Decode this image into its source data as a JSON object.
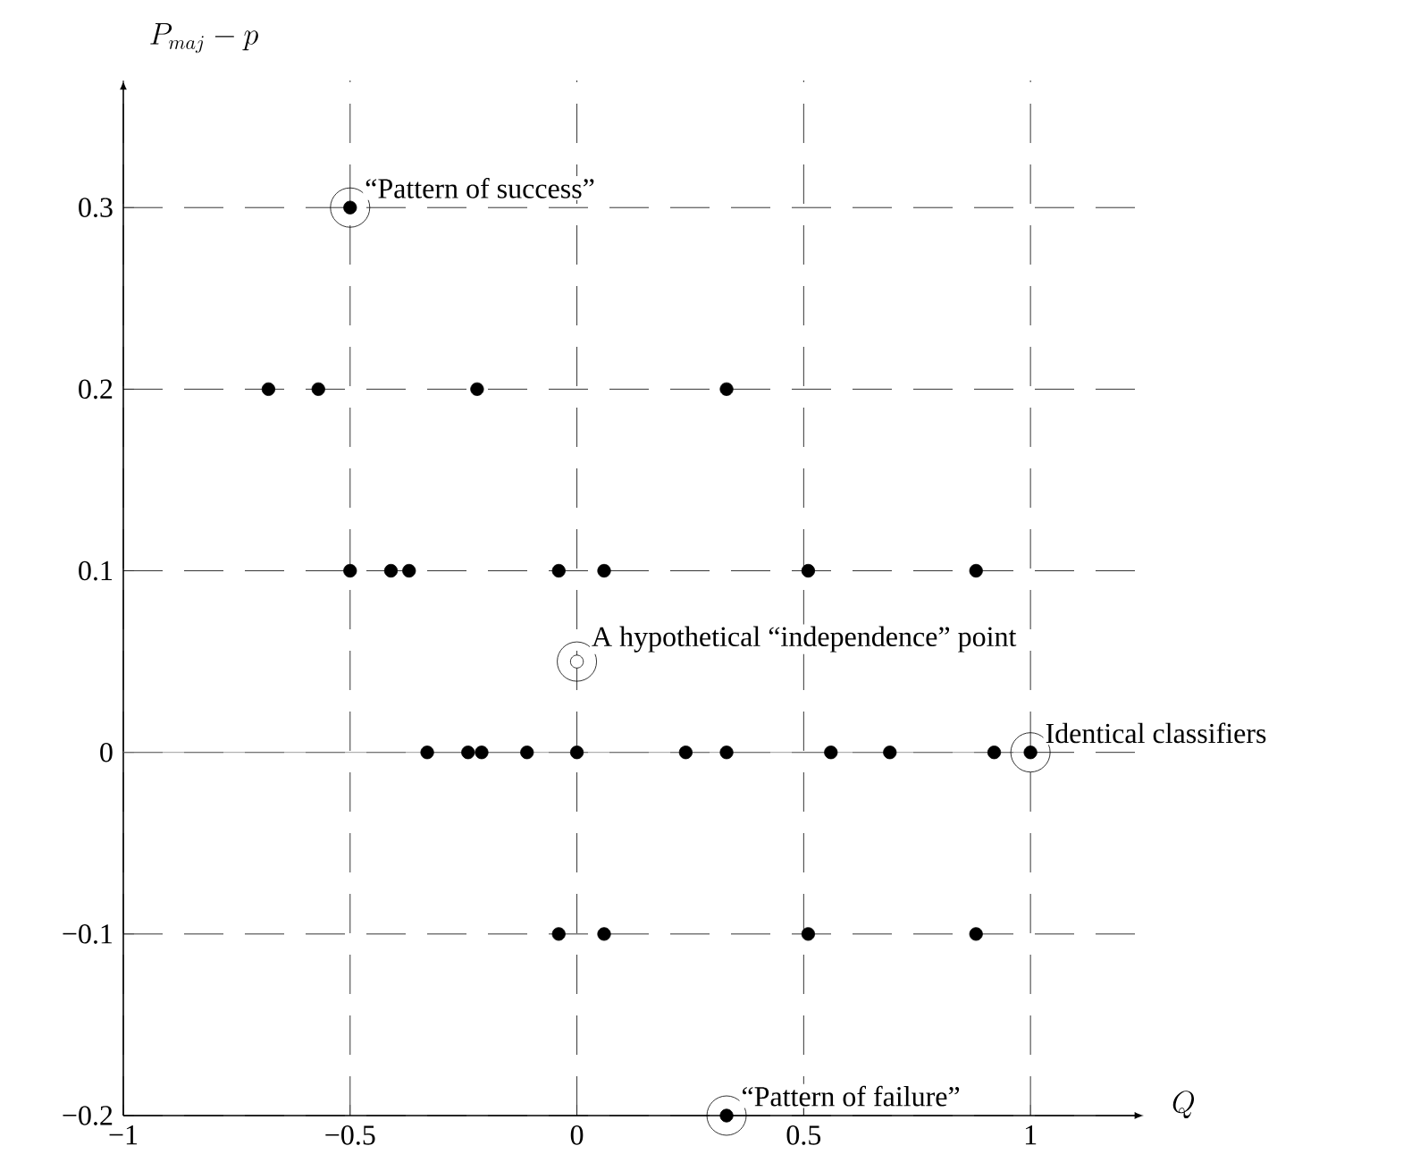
{
  "chart_data": {
    "type": "scatter",
    "xlabel": "Q",
    "ylabel": "P_{maj}-p",
    "series": [
      {
        "color": "#000000",
        "marker": "circle",
        "x": [
          -0.5,
          -0.68,
          -0.57,
          -0.22,
          0.33,
          -0.5,
          -0.41,
          -0.37,
          -0.04,
          0.06,
          0.51,
          0.88,
          -0.33,
          -0.24,
          -0.21,
          -0.11,
          0,
          0.24,
          0.33,
          0.56,
          0.69,
          0.92,
          1,
          -0.04,
          0.06,
          0.51,
          0.88,
          0.33
        ],
        "values": [
          0.3,
          0.2,
          0.2,
          0.2,
          0.2,
          0.1,
          0.1,
          0.1,
          0.1,
          0.1,
          0.1,
          0.1,
          0,
          0,
          0,
          0,
          0,
          0,
          0,
          0,
          0,
          0,
          0,
          -0.1,
          -0.1,
          -0.1,
          -0.1,
          -0.2
        ]
      },
      {
        "color": "#ffffff",
        "marker": "circle",
        "x": [
          0
        ],
        "values": [
          0.05
        ]
      }
    ],
    "annotations": [
      {
        "text": "“Pattern of success”",
        "x": -0.5,
        "y": 0.3
      },
      {
        "text": "A hypothetical “independence” point",
        "x": 0,
        "y": 0.05
      },
      {
        "text": "Identical classifiers",
        "x": 1,
        "y": 0
      },
      {
        "text": "“Pattern of failure”",
        "x": 0.33,
        "y": -0.2
      }
    ],
    "ref_lines": [
      {
        "axis": "y",
        "value": 0,
        "line_style": "solid",
        "color": "#888888"
      }
    ],
    "xlim": [
      -1,
      1.25
    ],
    "ylim": [
      -0.2,
      0.37
    ],
    "xticks": [
      {
        "value": -1,
        "label": "−1"
      },
      {
        "value": -0.5,
        "label": "−0.5"
      },
      0,
      0.5,
      1
    ],
    "yticks": [
      {
        "value": -0.2,
        "label": "−0.2"
      },
      {
        "value": -0.1,
        "label": "−0.1"
      },
      0,
      0.1,
      0.2,
      0.3
    ],
    "grid": true
  }
}
